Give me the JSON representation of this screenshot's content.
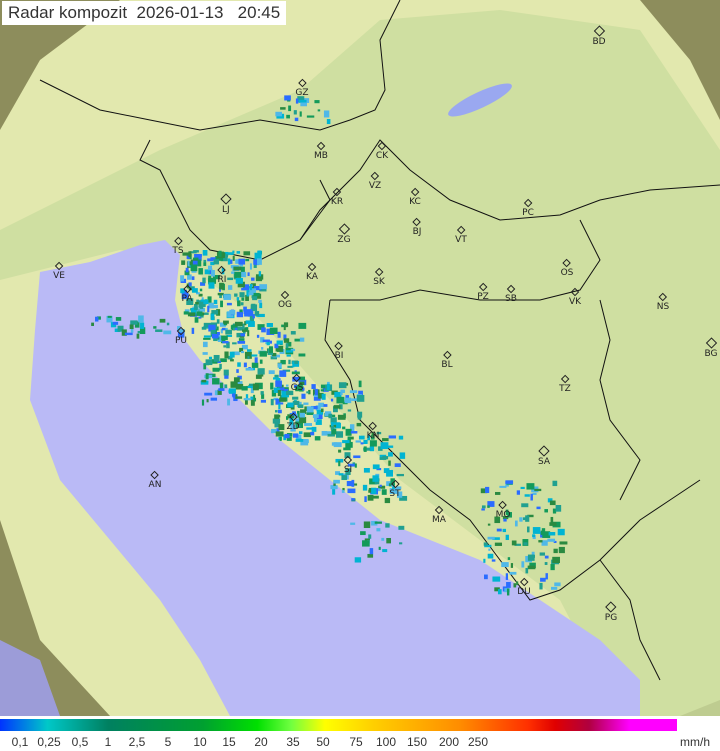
{
  "title": {
    "label": "Radar kompozit",
    "date": "2026-01-13",
    "time": "20:45"
  },
  "cities": [
    "GZ",
    "BD",
    "MB",
    "CK",
    "VZ",
    "KR",
    "KC",
    "PC",
    "LJ",
    "BJ",
    "TS",
    "ZG",
    "VT",
    "RI",
    "KA",
    "SK",
    "OS",
    "VE",
    "PA",
    "OG",
    "PZ",
    "SB",
    "VK",
    "NS",
    "PU",
    "BI",
    "BL",
    "BG",
    "GS",
    "TZ",
    "ZD",
    "KN",
    "SA",
    "SI",
    "AN",
    "ST",
    "MA",
    "MO",
    "DU",
    "PG"
  ],
  "colors": {
    "sea": "#babaf6",
    "land": "#c8d89a",
    "outside": "#8a8a5a",
    "coverage": "#e6ecb0"
  },
  "legend": {
    "ticks": [
      "0,1",
      "0,25",
      "0,5",
      "1",
      "2,5",
      "5",
      "10",
      "15",
      "20",
      "35",
      "50",
      "75",
      "100",
      "150",
      "200",
      "250"
    ],
    "unit": "mm/h"
  }
}
